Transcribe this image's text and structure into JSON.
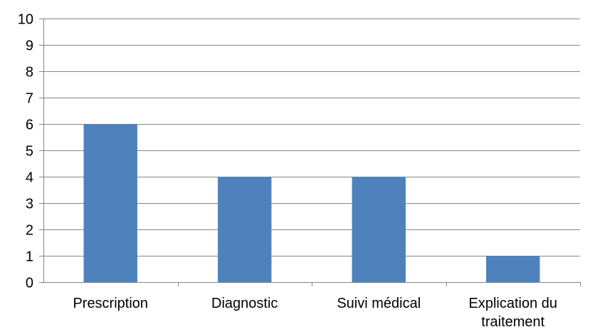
{
  "chart_data": {
    "type": "bar",
    "categories": [
      "Prescription",
      "Diagnostic",
      "Suivi médical",
      "Explication du traitement"
    ],
    "category_lines": [
      [
        "Prescription"
      ],
      [
        "Diagnostic"
      ],
      [
        "Suivi médical"
      ],
      [
        "Explication du",
        "traitement"
      ]
    ],
    "values": [
      6,
      4,
      4,
      1
    ],
    "ylim": [
      0,
      10
    ],
    "ytick_step": 1,
    "grid": true,
    "legend": "none",
    "bar_color": "#4f81bd",
    "grid_color": "#868686"
  }
}
